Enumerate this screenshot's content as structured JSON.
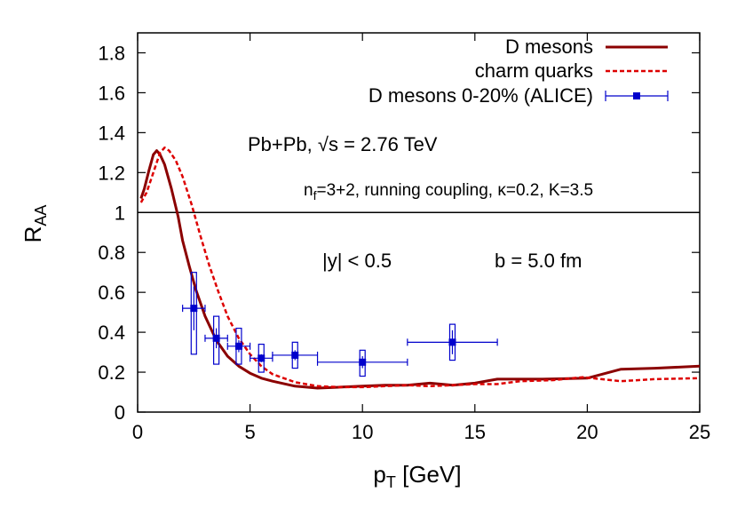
{
  "chart_data": {
    "type": "line",
    "xlabel": "p",
    "xlabel_sub": "T",
    "xlabel_unit": " [GeV]",
    "ylabel": "R",
    "ylabel_sub": "AA",
    "xlim": [
      0,
      25
    ],
    "ylim": [
      0,
      1.9
    ],
    "xticks": [
      0,
      5,
      10,
      15,
      20,
      25
    ],
    "xtick_labels": [
      "0",
      "5",
      "10",
      "15",
      "20",
      "25"
    ],
    "yticks": [
      0,
      0.2,
      0.4,
      0.6,
      0.8,
      1,
      1.2,
      1.4,
      1.6,
      1.8
    ],
    "ytick_labels": [
      "0",
      "0.2",
      "0.4",
      "0.6",
      "0.8",
      "1",
      "1.2",
      "1.4",
      "1.6",
      "1.8"
    ],
    "reference_line_y": 1,
    "grid": false,
    "legend_position": "top-right",
    "series": [
      {
        "name": "D mesons",
        "color": "#8b0000",
        "style": "solid",
        "points": [
          [
            0.15,
            1.07
          ],
          [
            0.3,
            1.12
          ],
          [
            0.5,
            1.21
          ],
          [
            0.7,
            1.29
          ],
          [
            0.85,
            1.31
          ],
          [
            1.0,
            1.29
          ],
          [
            1.2,
            1.24
          ],
          [
            1.5,
            1.12
          ],
          [
            1.8,
            0.98
          ],
          [
            2.0,
            0.86
          ],
          [
            2.3,
            0.73
          ],
          [
            2.6,
            0.61
          ],
          [
            3.0,
            0.48
          ],
          [
            3.5,
            0.36
          ],
          [
            4.0,
            0.28
          ],
          [
            4.5,
            0.23
          ],
          [
            5.0,
            0.195
          ],
          [
            5.5,
            0.17
          ],
          [
            6.0,
            0.155
          ],
          [
            7.0,
            0.13
          ],
          [
            8.0,
            0.12
          ],
          [
            9.0,
            0.125
          ],
          [
            10.0,
            0.13
          ],
          [
            11.0,
            0.135
          ],
          [
            12.0,
            0.135
          ],
          [
            13.0,
            0.145
          ],
          [
            14.0,
            0.135
          ],
          [
            15.0,
            0.145
          ],
          [
            16.0,
            0.165
          ],
          [
            18.0,
            0.165
          ],
          [
            20.0,
            0.17
          ],
          [
            21.5,
            0.215
          ],
          [
            23.0,
            0.22
          ],
          [
            25.0,
            0.23
          ]
        ]
      },
      {
        "name": "charm quarks",
        "color": "#dd0000",
        "style": "dashed",
        "points": [
          [
            0.15,
            1.05
          ],
          [
            0.4,
            1.1
          ],
          [
            0.7,
            1.2
          ],
          [
            1.0,
            1.3
          ],
          [
            1.2,
            1.325
          ],
          [
            1.4,
            1.31
          ],
          [
            1.7,
            1.26
          ],
          [
            2.0,
            1.18
          ],
          [
            2.4,
            1.04
          ],
          [
            2.8,
            0.88
          ],
          [
            3.2,
            0.73
          ],
          [
            3.6,
            0.6
          ],
          [
            4.0,
            0.48
          ],
          [
            4.5,
            0.37
          ],
          [
            5.0,
            0.29
          ],
          [
            5.5,
            0.23
          ],
          [
            6.0,
            0.19
          ],
          [
            7.0,
            0.15
          ],
          [
            8.0,
            0.13
          ],
          [
            9.0,
            0.125
          ],
          [
            10.0,
            0.125
          ],
          [
            11.0,
            0.13
          ],
          [
            12.0,
            0.135
          ],
          [
            13.0,
            0.13
          ],
          [
            14.0,
            0.135
          ],
          [
            15.0,
            0.14
          ],
          [
            16.0,
            0.14
          ],
          [
            17.0,
            0.155
          ],
          [
            18.5,
            0.16
          ],
          [
            19.8,
            0.175
          ],
          [
            21.5,
            0.155
          ],
          [
            23.0,
            0.165
          ],
          [
            25.0,
            0.17
          ]
        ]
      },
      {
        "name": "D mesons 0-20% (ALICE)",
        "color": "#0000cc",
        "style": "points",
        "points": [
          {
            "x": 2.5,
            "y": 0.52,
            "xerr": 0.5,
            "stat": [
              0.41,
              0.63
            ],
            "sys": [
              0.29,
              0.7
            ]
          },
          {
            "x": 3.5,
            "y": 0.37,
            "xerr": 0.5,
            "stat": [
              0.32,
              0.42
            ],
            "sys": [
              0.24,
              0.48
            ]
          },
          {
            "x": 4.5,
            "y": 0.33,
            "xerr": 0.5,
            "stat": [
              0.3,
              0.36
            ],
            "sys": [
              0.24,
              0.42
            ]
          },
          {
            "x": 5.5,
            "y": 0.27,
            "xerr": 0.5,
            "stat": [
              0.25,
              0.29
            ],
            "sys": [
              0.2,
              0.34
            ]
          },
          {
            "x": 7.0,
            "y": 0.285,
            "xerr": 1.0,
            "stat": [
              0.26,
              0.31
            ],
            "sys": [
              0.22,
              0.35
            ]
          },
          {
            "x": 10.0,
            "y": 0.25,
            "xerr": 2.0,
            "stat": [
              0.22,
              0.28
            ],
            "sys": [
              0.18,
              0.31
            ]
          },
          {
            "x": 14.0,
            "y": 0.35,
            "xerr": 2.0,
            "stat": [
              0.29,
              0.41
            ],
            "sys": [
              0.26,
              0.44
            ]
          }
        ]
      }
    ],
    "annotations": {
      "collision": "Pb+Pb, √s = 2.76 TeV",
      "params_prefix": "n",
      "params_sub": "f",
      "params_rest": "=3+2, running coupling, κ=0.2, K=3.5",
      "rapidity": "|y| < 0.5",
      "impact": "b = 5.0 fm"
    }
  }
}
